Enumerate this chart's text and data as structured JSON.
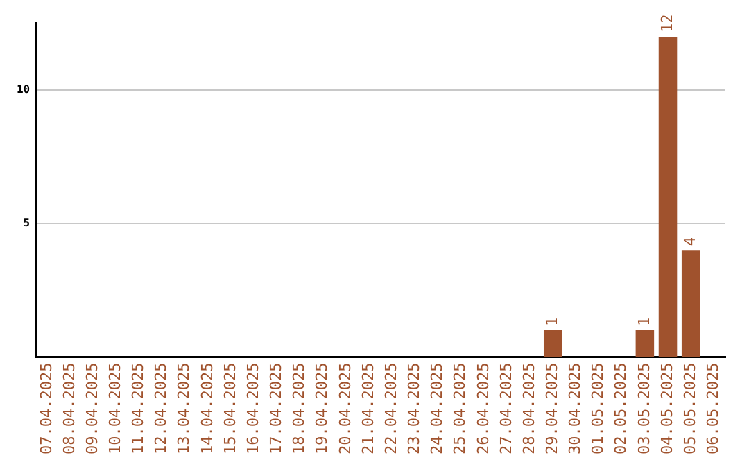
{
  "chart_data": {
    "type": "bar",
    "categories": [
      "07.04.2025",
      "08.04.2025",
      "09.04.2025",
      "10.04.2025",
      "11.04.2025",
      "12.04.2025",
      "13.04.2025",
      "14.04.2025",
      "15.04.2025",
      "16.04.2025",
      "17.04.2025",
      "18.04.2025",
      "19.04.2025",
      "20.04.2025",
      "21.04.2025",
      "22.04.2025",
      "23.04.2025",
      "24.04.2025",
      "25.04.2025",
      "26.04.2025",
      "27.04.2025",
      "28.04.2025",
      "29.04.2025",
      "30.04.2025",
      "01.05.2025",
      "02.05.2025",
      "03.05.2025",
      "04.05.2025",
      "05.05.2025",
      "06.05.2025"
    ],
    "values": [
      0,
      0,
      0,
      0,
      0,
      0,
      0,
      0,
      0,
      0,
      0,
      0,
      0,
      0,
      0,
      0,
      0,
      0,
      0,
      0,
      0,
      0,
      1,
      0,
      0,
      0,
      1,
      12,
      4,
      0
    ],
    "value_labels": [
      null,
      null,
      null,
      null,
      null,
      null,
      null,
      null,
      null,
      null,
      null,
      null,
      null,
      null,
      null,
      null,
      null,
      null,
      null,
      null,
      null,
      null,
      "1",
      null,
      null,
      null,
      "1",
      "12",
      "4",
      null
    ],
    "color": "#a0522d",
    "ylim": [
      0,
      12.5
    ],
    "yticks": [
      5,
      10
    ],
    "grid": "y",
    "legend": false
  }
}
